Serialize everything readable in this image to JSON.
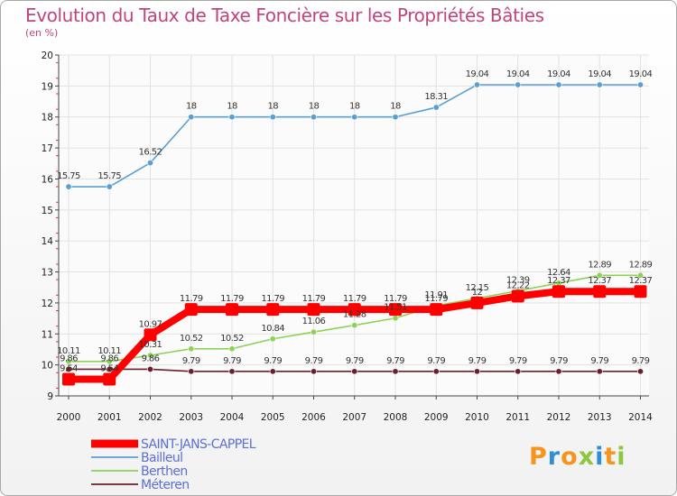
{
  "chart_data": {
    "type": "line",
    "title": "Evolution du Taux de Taxe Foncière sur les Propriétés Bâties",
    "subtitle": "(en %)",
    "xlabel": "",
    "ylabel": "",
    "ylim": [
      9,
      20
    ],
    "yticks": [
      9,
      10,
      11,
      12,
      13,
      14,
      15,
      16,
      17,
      18,
      19,
      20
    ],
    "x": [
      "2000",
      "2001",
      "2002",
      "2003",
      "2004",
      "2005",
      "2006",
      "2007",
      "2008",
      "2009",
      "2010",
      "2011",
      "2012",
      "2013",
      "2014"
    ],
    "series": [
      {
        "name": "SAINT-JANS-CAPPEL",
        "color": "#ff0000",
        "values": [
          9.54,
          9.54,
          10.97,
          11.79,
          11.79,
          11.79,
          11.79,
          11.79,
          11.79,
          11.79,
          12.0,
          12.22,
          12.37,
          12.37,
          12.37
        ],
        "labels": [
          "9.54",
          "9.54",
          "10.97",
          "11.79",
          "11.79",
          "11.79",
          "11.79",
          "11.79",
          "11.79",
          "11.79",
          "12",
          "12.22",
          "12.37",
          "12.37",
          "12.37"
        ]
      },
      {
        "name": "Bailleul",
        "color": "#5a9fd4",
        "values": [
          15.75,
          15.75,
          16.52,
          18,
          18,
          18,
          18,
          18,
          18,
          18.31,
          19.04,
          19.04,
          19.04,
          19.04,
          19.04
        ],
        "labels": [
          "15.75",
          "15.75",
          "16.52",
          "18",
          "18",
          "18",
          "18",
          "18",
          "18",
          "18.31",
          "19.04",
          "19.04",
          "19.04",
          "19.04",
          "19.04"
        ]
      },
      {
        "name": "Berthen",
        "color": "#8ed157",
        "values": [
          10.11,
          10.11,
          10.31,
          10.52,
          10.52,
          10.84,
          11.06,
          11.28,
          11.51,
          11.91,
          12.15,
          12.39,
          12.64,
          12.89,
          12.89
        ],
        "labels": [
          "10.11",
          "10.11",
          "10.31",
          "10.52",
          "10.52",
          "10.84",
          "11.06",
          "11.28",
          "11.51",
          "11.91",
          "12.15",
          "12.39",
          "12.64",
          "12.89",
          "12.89"
        ]
      },
      {
        "name": "Méteren",
        "color": "#6b1f2a",
        "values": [
          9.86,
          9.86,
          9.86,
          9.79,
          9.79,
          9.79,
          9.79,
          9.79,
          9.79,
          9.79,
          9.79,
          9.79,
          9.79,
          9.79,
          9.79
        ],
        "labels": [
          "9.86",
          "9.86",
          "9.86",
          "9.79",
          "9.79",
          "9.79",
          "9.79",
          "9.79",
          "9.79",
          "9.79",
          "9.79",
          "9.79",
          "9.79",
          "9.79",
          "9.79"
        ]
      }
    ],
    "legend": {
      "position": "bottom-left",
      "text_color": "#5b6fd6"
    }
  },
  "logo": {
    "text": "Proxiti",
    "colors": [
      "#f7941d",
      "#2e8fd6",
      "#f7941d",
      "#8dc63f",
      "#2e8fd6",
      "#f7941d",
      "#8dc63f"
    ]
  }
}
